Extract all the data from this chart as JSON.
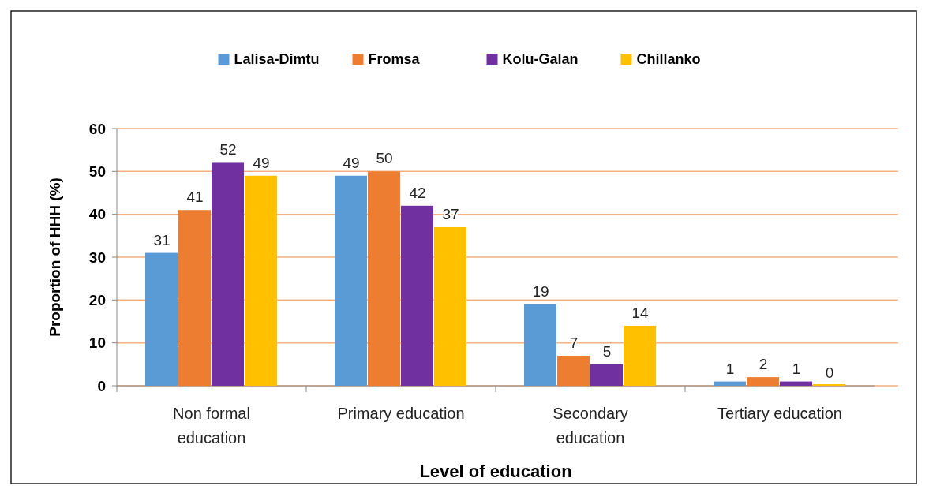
{
  "chart_data": {
    "type": "bar",
    "xlabel": "Level of education",
    "ylabel": "Proportion of HHH (%)",
    "categories": [
      "Non formal education",
      "Primary education",
      "Secondary education",
      "Tertiary education"
    ],
    "series": [
      {
        "name": "Lalisa-Dimtu",
        "color": "#5b9bd5",
        "values": [
          31,
          49,
          19,
          1
        ]
      },
      {
        "name": "Fromsa",
        "color": "#ed7d31",
        "values": [
          41,
          50,
          7,
          2
        ]
      },
      {
        "name": "Kolu-Galan",
        "color": "#7030a0",
        "values": [
          52,
          42,
          5,
          1
        ]
      },
      {
        "name": "Chillanko",
        "color": "#ffc000",
        "values": [
          49,
          37,
          14,
          0
        ]
      }
    ],
    "ylim": [
      0,
      60
    ],
    "yticks": [
      0,
      10,
      20,
      30,
      40,
      50,
      60
    ],
    "grid": "y",
    "legend": "top",
    "data_labels": true
  }
}
